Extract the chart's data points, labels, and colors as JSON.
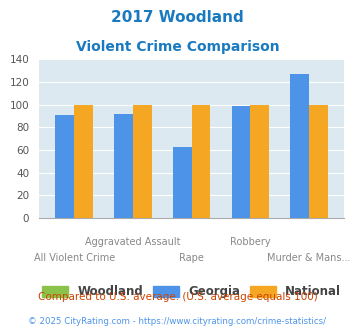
{
  "title_line1": "2017 Woodland",
  "title_line2": "Violent Crime Comparison",
  "georgia": [
    91,
    92,
    63,
    99,
    127
  ],
  "national": [
    100,
    100,
    100,
    100,
    100
  ],
  "woodland_color": "#8bc34a",
  "georgia_color": "#4d94e8",
  "national_color": "#f5a623",
  "title_color": "#1a7abf",
  "background_color": "#dce9f0",
  "ylim": [
    0,
    140
  ],
  "yticks": [
    0,
    20,
    40,
    60,
    80,
    100,
    120,
    140
  ],
  "footnote1": "Compared to U.S. average. (U.S. average equals 100)",
  "footnote2": "© 2025 CityRating.com - https://www.cityrating.com/crime-statistics/",
  "footnote1_color": "#cc4400",
  "footnote2_color": "#4d94e8",
  "bar_width": 0.32,
  "categories_top": [
    "",
    "Aggravated Assault",
    "",
    "Robbery",
    ""
  ],
  "categories_bottom": [
    "All Violent Crime",
    "",
    "Rape",
    "",
    "Murder & Mans..."
  ]
}
